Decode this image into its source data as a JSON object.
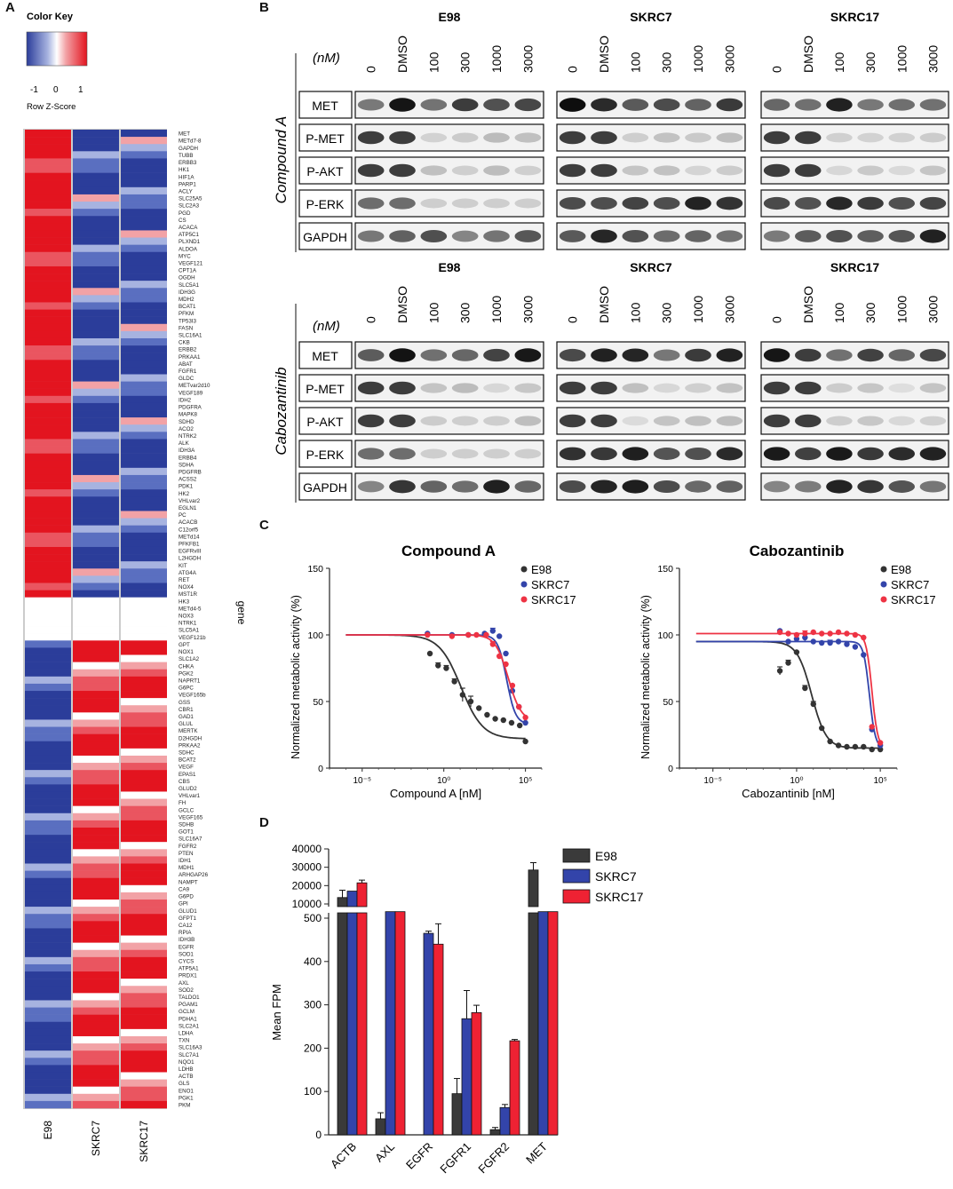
{
  "panels": {
    "a": "A",
    "b": "B",
    "c": "C",
    "d": "D"
  },
  "heatmap": {
    "key_title": "Color Key",
    "key_ticks": [
      "-1",
      "0",
      "1"
    ],
    "key_label": "Row Z-Score",
    "columns": [
      "E98",
      "SKRC7",
      "SKRC17"
    ],
    "row_axis_label": "gene",
    "colors": {
      "deep_blue": "#2b3d9a",
      "mid_blue": "#5a6fc0",
      "light_blue": "#a7b3e0",
      "white": "#ffffff",
      "light_red": "#f2a2a6",
      "mid_red": "#ea5560",
      "deep_red": "#e3141f"
    },
    "genes": [
      "MET",
      "METd7-8",
      "GAPDH",
      "TUBB",
      "ERBB3",
      "HK1",
      "HIF1A",
      "PARP1",
      "ACLY",
      "SLC25A5",
      "SLC2A3",
      "PGD",
      "CS",
      "ACACA",
      "ATP5C1",
      "PLXND1",
      "ALDOA",
      "MYC",
      "VEGF121",
      "CPT1A",
      "OGDH",
      "SLC5A1",
      "IDH3G",
      "MDH2",
      "BCAT1",
      "PFKM",
      "TP53I3",
      "FASN",
      "SLC16A1",
      "CKB",
      "ERBB2",
      "PRKAA1",
      "ABAT",
      "FGFR1",
      "GLDC",
      "METvar2d10",
      "VEGF189",
      "IDH2",
      "PDGFRA",
      "MAPK8",
      "SDHD",
      "ACO2",
      "NTRK2",
      "ALK",
      "IDH3A",
      "ERBB4",
      "SDHA",
      "PDGFRB",
      "ACSS2",
      "PDK1",
      "HK2",
      "VHLvar2",
      "EGLN1",
      "PC",
      "ACACB",
      "C12orf5",
      "METd14",
      "PFKFB1",
      "EGFRvIII",
      "L2HGDH",
      "KIT",
      "ATG4A",
      "RET",
      "NOX4",
      "MST1R",
      "HK3",
      "METd4-5",
      "NOX3",
      "NTRK1",
      "SLC5A1",
      "VEGF121b",
      "GPT",
      "NOX1",
      "SLC1A2",
      "CHKA",
      "PGK2",
      "NAPRT1",
      "G6PC",
      "VEGF165b",
      "GSS",
      "CBR1",
      "GAD1",
      "GLUL",
      "MERTK",
      "D2HGDH",
      "PRKAA2",
      "SDHC",
      "BCAT2",
      "VEGF",
      "EPAS1",
      "CBS",
      "GLUD2",
      "VHLvar1",
      "FH",
      "GCLC",
      "VEGF165",
      "SDHB",
      "GOT1",
      "SLC16A7",
      "FGFR2",
      "PTEN",
      "IDH1",
      "MDH1",
      "ARHGAP26",
      "NAMPT",
      "CA9",
      "G6PD",
      "GPI",
      "GLUD1",
      "GFPT1",
      "CA12",
      "RPIA",
      "IDH3B",
      "EGFR",
      "SOD1",
      "CYCS",
      "ATP5A1",
      "PRDX1",
      "AXL",
      "SOD2",
      "TALDO1",
      "PGAM1",
      "GCLM",
      "PDHA1",
      "SLC2A1",
      "LDHA",
      "TXN",
      "SLC16A3",
      "SLC7A1",
      "NQO1",
      "LDHB",
      "ACTB",
      "GLS",
      "ENO1",
      "PGK1",
      "PKM"
    ]
  },
  "western": {
    "nm_label": "(nM)",
    "lanes": [
      "0",
      "DMSO",
      "100",
      "300",
      "1000",
      "3000"
    ],
    "cell_lines": [
      "E98",
      "SKRC7",
      "SKRC17"
    ],
    "blots": [
      "MET",
      "P-MET",
      "P-AKT",
      "P-ERK",
      "GAPDH"
    ],
    "treatments": [
      "Compound A",
      "Cabozantinib"
    ]
  },
  "chart_data": [
    {
      "type": "scatter",
      "title": "Compound A",
      "xlabel": "Compound A [nM]",
      "ylabel": "Normalized metabolic activity  (%)",
      "xscale": "log10",
      "xlim": [
        -7,
        6
      ],
      "ylim": [
        0,
        150
      ],
      "xticks": [
        "10⁻⁵",
        "10⁰",
        "10⁵"
      ],
      "yticks": [
        "0",
        "50",
        "100",
        "150"
      ],
      "series": [
        {
          "name": "E98",
          "color": "#333333",
          "points": [
            [
              -0.85,
              86
            ],
            [
              -0.35,
              77
            ],
            [
              0.15,
              75
            ],
            [
              0.65,
              65
            ],
            [
              1.15,
              55
            ],
            [
              1.65,
              50
            ],
            [
              2.15,
              45
            ],
            [
              2.65,
              40
            ],
            [
              3.15,
              37
            ],
            [
              3.65,
              36
            ],
            [
              4.15,
              34
            ],
            [
              4.65,
              32
            ],
            [
              5.0,
              20
            ]
          ],
          "errors": [
            [
              -0.35,
              2
            ],
            [
              0.15,
              2
            ],
            [
              0.65,
              2
            ],
            [
              1.15,
              5
            ],
            [
              1.65,
              4
            ]
          ],
          "fit": {
            "top": 100,
            "bottom": 22,
            "logec50": 1.05,
            "hill": 0.65
          }
        },
        {
          "name": "SKRC7",
          "color": "#3344aa",
          "points": [
            [
              -1.0,
              101
            ],
            [
              0.5,
              100
            ],
            [
              1.5,
              100
            ],
            [
              2.5,
              101
            ],
            [
              3.0,
              103
            ],
            [
              3.4,
              99
            ],
            [
              3.8,
              86
            ],
            [
              4.2,
              58
            ],
            [
              4.6,
              46
            ],
            [
              5.0,
              34
            ]
          ],
          "errors": [
            [
              3.0,
              2
            ]
          ],
          "fit": {
            "top": 100,
            "bottom": 33,
            "logec50": 3.85,
            "hill": 1.6
          }
        },
        {
          "name": "SKRC17",
          "color": "#ee3344",
          "points": [
            [
              -1.0,
              100
            ],
            [
              0.5,
              99
            ],
            [
              1.5,
              100
            ],
            [
              2.0,
              100
            ],
            [
              2.6,
              100
            ],
            [
              3.0,
              93
            ],
            [
              3.4,
              84
            ],
            [
              3.8,
              78
            ],
            [
              4.2,
              62
            ],
            [
              4.6,
              46
            ],
            [
              5.0,
              38
            ]
          ],
          "errors": [
            [
              3.0,
              2
            ]
          ],
          "fit": {
            "top": 100,
            "bottom": 35,
            "logec50": 3.95,
            "hill": 1.1
          }
        }
      ]
    },
    {
      "type": "scatter",
      "title": "Cabozantinib",
      "xlabel": "Cabozantinib [nM]",
      "ylabel": "Normalized metabolic activity  (%)",
      "xscale": "log10",
      "xlim": [
        -7,
        6
      ],
      "ylim": [
        0,
        150
      ],
      "xticks": [
        "10⁻⁵",
        "10⁰",
        "10⁵"
      ],
      "yticks": [
        "0",
        "50",
        "100",
        "150"
      ],
      "series": [
        {
          "name": "E98",
          "color": "#333333",
          "points": [
            [
              -1.0,
              73
            ],
            [
              -0.5,
              79
            ],
            [
              0.0,
              87
            ],
            [
              0.5,
              60
            ],
            [
              1.0,
              48
            ],
            [
              1.5,
              30
            ],
            [
              2.0,
              20
            ],
            [
              2.5,
              17
            ],
            [
              3.0,
              16
            ],
            [
              3.5,
              16
            ],
            [
              4.0,
              16
            ],
            [
              4.5,
              14
            ],
            [
              5.0,
              14
            ]
          ],
          "errors": [
            [
              -1.0,
              3
            ],
            [
              -0.5,
              2
            ],
            [
              0.5,
              2
            ],
            [
              1.0,
              2
            ]
          ],
          "fit": {
            "top": 95,
            "bottom": 15,
            "logec50": 0.9,
            "hill": 1.0
          }
        },
        {
          "name": "SKRC7",
          "color": "#3344aa",
          "points": [
            [
              -1.0,
              103
            ],
            [
              -0.5,
              95
            ],
            [
              0.0,
              97
            ],
            [
              0.5,
              98
            ],
            [
              1.0,
              95
            ],
            [
              1.5,
              94
            ],
            [
              2.0,
              94
            ],
            [
              2.5,
              95
            ],
            [
              3.0,
              93
            ],
            [
              3.5,
              91
            ],
            [
              4.0,
              85
            ],
            [
              4.5,
              29
            ],
            [
              5.0,
              17
            ]
          ],
          "errors": [
            [
              0.5,
              3
            ],
            [
              2.0,
              2
            ],
            [
              3.0,
              2
            ]
          ],
          "fit": {
            "top": 95,
            "bottom": 15,
            "logec50": 4.35,
            "hill": 2.5
          }
        },
        {
          "name": "SKRC17",
          "color": "#ee3344",
          "points": [
            [
              -1.0,
              102
            ],
            [
              -0.5,
              101
            ],
            [
              0.0,
              100
            ],
            [
              0.5,
              101
            ],
            [
              1.0,
              102
            ],
            [
              1.5,
              101
            ],
            [
              2.0,
              101
            ],
            [
              2.5,
              102
            ],
            [
              3.0,
              101
            ],
            [
              3.5,
              100
            ],
            [
              4.0,
              98
            ],
            [
              4.5,
              31
            ],
            [
              5.0,
              19
            ]
          ],
          "errors": [
            [
              0.5,
              2
            ]
          ],
          "fit": {
            "top": 101,
            "bottom": 15,
            "logec50": 4.5,
            "hill": 2.5
          }
        }
      ]
    },
    {
      "type": "bar",
      "ylabel": "Mean FPM",
      "categories": [
        "ACTB",
        "AXL",
        "EGFR",
        "FGFR1",
        "FGFR2",
        "MET"
      ],
      "series": [
        {
          "name": "E98",
          "color": "#3a3a3a",
          "values": [
            13500,
            37,
            0,
            95,
            12,
            28500
          ],
          "errors": [
            4000,
            14,
            0,
            35,
            5,
            4000
          ]
        },
        {
          "name": "SKRC7",
          "color": "#3344aa",
          "values": [
            17000,
            515,
            465,
            268,
            63,
            515
          ],
          "errors": [
            0,
            0,
            5,
            65,
            7,
            0
          ]
        },
        {
          "name": "SKRC17",
          "color": "#ee2233",
          "values": [
            21500,
            515,
            440,
            282,
            217,
            515
          ],
          "errors": [
            1500,
            0,
            47,
            17,
            3,
            0
          ]
        }
      ],
      "lower_ylim": [
        0,
        500
      ],
      "upper_ylim": [
        10000,
        40000
      ],
      "yticks_lower": [
        "0",
        "100",
        "200",
        "300",
        "400",
        "500"
      ],
      "yticks_upper": [
        "10000",
        "20000",
        "30000",
        "40000"
      ]
    }
  ]
}
